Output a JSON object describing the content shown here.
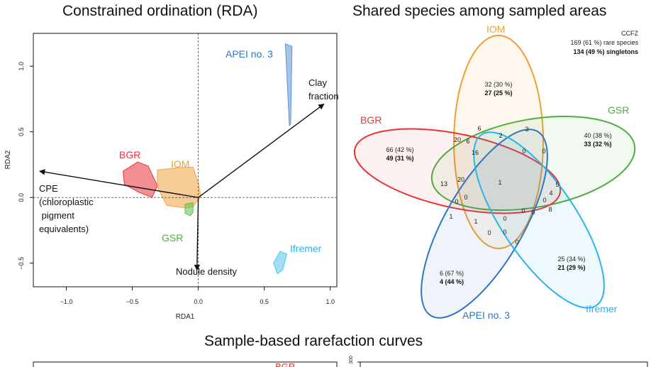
{
  "titles": {
    "rda": "Constrained ordination (RDA)",
    "venn": "Shared species among sampled areas",
    "rarefaction": "Sample-based rarefaction curves"
  },
  "chart_data": [
    {
      "type": "scatter",
      "title": "Constrained ordination (RDA)",
      "xlabel": "RDA1",
      "ylabel": "RDA2",
      "xlim": [
        -1.25,
        1.05
      ],
      "ylim": [
        -0.68,
        1.25
      ],
      "xticks": [
        -1.0,
        -0.5,
        0.0,
        0.5,
        1.0
      ],
      "xtick_labels": [
        "−1.0",
        "−0.5",
        "0.0",
        "0.5",
        "1.0"
      ],
      "yticks": [
        -0.5,
        0.0,
        0.5,
        1.0
      ],
      "ytick_labels": [
        "−0.5",
        "0.0",
        "0.5",
        "1.0"
      ],
      "vectors": [
        {
          "name": "Clay fraction",
          "lines": [
            "Clay",
            "fraction"
          ],
          "x": 0.95,
          "y": 0.71
        },
        {
          "name": "CPE (chloroplastic pigment equivalents)",
          "lines": [
            "CPE",
            "(chloroplastic",
            " pigment",
            "equivalents)"
          ],
          "x": -1.2,
          "y": 0.2
        },
        {
          "name": "Nodule density",
          "lines": [
            "Nodule density"
          ],
          "x": -0.01,
          "y": -0.55
        }
      ],
      "groups": [
        {
          "name": "APEI no. 3",
          "color": "#5b93d3",
          "label_color": "#2e75c4",
          "hull": [
            [
              0.66,
              1.17
            ],
            [
              0.71,
              1.15
            ],
            [
              0.7,
              0.56
            ],
            [
              0.69,
              0.55
            ]
          ]
        },
        {
          "name": "BGR",
          "color": "#e8333a",
          "label_color": "#e8333a",
          "hull": [
            [
              -0.57,
              0.2
            ],
            [
              -0.46,
              0.27
            ],
            [
              -0.38,
              0.24
            ],
            [
              -0.31,
              0.09
            ],
            [
              -0.35,
              0.0
            ],
            [
              -0.45,
              0.04
            ],
            [
              -0.56,
              0.1
            ]
          ]
        },
        {
          "name": "IOM",
          "color": "#f3a23f",
          "label_color": "#f0a030",
          "hull": [
            [
              -0.31,
              0.21
            ],
            [
              -0.12,
              0.23
            ],
            [
              -0.04,
              0.23
            ],
            [
              0.0,
              0.11
            ],
            [
              0.02,
              0.01
            ],
            [
              -0.04,
              -0.07
            ],
            [
              -0.1,
              -0.08
            ],
            [
              -0.24,
              -0.06
            ],
            [
              -0.31,
              0.08
            ]
          ]
        },
        {
          "name": "GSR",
          "color": "#5cbf4c",
          "label_color": "#4cb040",
          "hull": [
            [
              -0.1,
              -0.05
            ],
            [
              -0.04,
              -0.04
            ],
            [
              -0.04,
              -0.11
            ],
            [
              -0.06,
              -0.14
            ],
            [
              -0.1,
              -0.12
            ]
          ]
        },
        {
          "name": "Ifremer",
          "color": "#4ec6ef",
          "label_color": "#29b5e8",
          "hull": [
            [
              0.57,
              -0.5
            ],
            [
              0.62,
              -0.41
            ],
            [
              0.67,
              -0.43
            ],
            [
              0.64,
              -0.55
            ],
            [
              0.6,
              -0.58
            ]
          ]
        }
      ]
    },
    {
      "type": "venn",
      "title": "Shared species among sampled areas",
      "note": {
        "name": "CCFZ",
        "rare": "169 (61 %) rare species",
        "singletons": "134 (49 %) singletons"
      },
      "sets": [
        {
          "name": "IOM",
          "color": "#f0a030",
          "unique": "32 (30 %)",
          "unique_singletons": "27 (25 %)"
        },
        {
          "name": "GSR",
          "color": "#4cb040",
          "unique": "40 (38 %)",
          "unique_singletons": "33 (32 %)"
        },
        {
          "name": "BGR",
          "color": "#e8333a",
          "unique": "66 (42 %)",
          "unique_singletons": "49 (31 %)"
        },
        {
          "name": "APEI no. 3",
          "color": "#2e75c4",
          "unique": "6 (67 %)",
          "unique_singletons": "4 (44 %)"
        },
        {
          "name": "Ifremer",
          "color": "#29b5e8",
          "unique": "25 (34 %)",
          "unique_singletons": "21 (29 %)"
        }
      ],
      "intersection_counts": [
        "6",
        "3",
        "2",
        "20",
        "6",
        "16",
        "0",
        "0",
        "20",
        "13",
        "1",
        "0",
        "0",
        "5",
        "4",
        "0",
        "8",
        "1",
        "1",
        "0",
        "0",
        "0",
        "0",
        "0",
        "0"
      ]
    }
  ],
  "rarefaction": {
    "left_legend_label": "BGR",
    "right_y_tick": "300"
  }
}
